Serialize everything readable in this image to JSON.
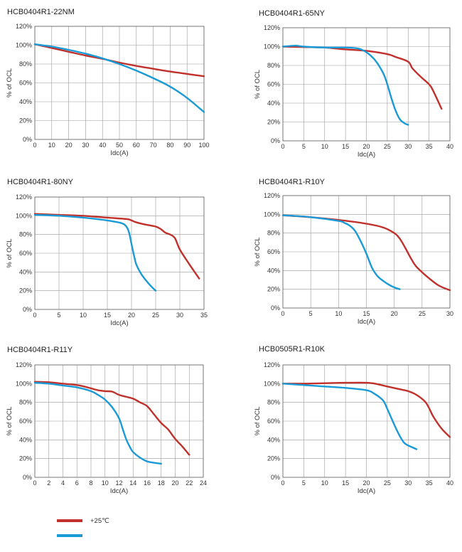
{
  "legend": {
    "items": [
      {
        "label": "+25℃",
        "color": "#c0312b"
      },
      {
        "label": "",
        "color": "#1a9ad6"
      }
    ]
  },
  "chart_data": [
    {
      "type": "line",
      "title": "HCB0404R1-22NM",
      "xlabel": "Idc(A)",
      "ylabel": "% of OCL",
      "xlim": [
        0,
        100
      ],
      "ylim": [
        0,
        120
      ],
      "xticks": [
        0,
        10,
        20,
        30,
        40,
        50,
        60,
        70,
        80,
        90,
        100
      ],
      "yticks": [
        0,
        20,
        40,
        60,
        80,
        100,
        120
      ],
      "grid": true,
      "series": [
        {
          "color": "#c0312b",
          "x": [
            0,
            10,
            20,
            30,
            40,
            50,
            60,
            70,
            80,
            90,
            100
          ],
          "y": [
            101,
            97,
            93,
            89,
            85.5,
            81.5,
            78,
            75,
            72,
            69.5,
            67
          ]
        },
        {
          "color": "#1a9ad6",
          "x": [
            0,
            10,
            20,
            30,
            40,
            50,
            60,
            70,
            80,
            90,
            100
          ],
          "y": [
            101,
            98.5,
            95,
            91,
            86,
            80,
            73,
            65,
            56,
            44,
            29
          ]
        }
      ]
    },
    {
      "type": "line",
      "title": "HCB0404R1-65NY",
      "xlabel": "Idc(A)",
      "ylabel": "% of OCL",
      "xlim": [
        0,
        40
      ],
      "ylim": [
        0,
        120
      ],
      "xticks": [
        0,
        5,
        10,
        15,
        20,
        25,
        30,
        35,
        40
      ],
      "yticks": [
        0,
        20,
        40,
        60,
        80,
        100,
        120
      ],
      "grid": true,
      "series": [
        {
          "color": "#c0312b",
          "x": [
            0,
            5,
            10,
            15,
            20,
            25,
            27,
            30,
            31,
            33,
            35,
            36,
            38
          ],
          "y": [
            100,
            99.5,
            99,
            97,
            95.5,
            92,
            89,
            84,
            77,
            68,
            60,
            53,
            34
          ]
        },
        {
          "color": "#1a9ad6",
          "x": [
            0,
            3,
            5,
            10,
            15,
            18,
            20,
            22,
            24,
            25,
            26,
            27,
            28,
            29,
            30
          ],
          "y": [
            100,
            101,
            100,
            99,
            99,
            98,
            94,
            86,
            72,
            60,
            45,
            32,
            23,
            19,
            17
          ]
        }
      ]
    },
    {
      "type": "line",
      "title": "HCB0404R1-80NY",
      "xlabel": "Idc(A)",
      "ylabel": "% of OCL",
      "xlim": [
        0,
        35
      ],
      "ylim": [
        0,
        120
      ],
      "xticks": [
        0,
        5,
        10,
        15,
        20,
        25,
        30,
        35
      ],
      "yticks": [
        0,
        20,
        40,
        60,
        80,
        100,
        120
      ],
      "grid": true,
      "series": [
        {
          "color": "#c0312b",
          "x": [
            0,
            5,
            10,
            15,
            19,
            20,
            21,
            23,
            25,
            26,
            27,
            28,
            29,
            30,
            32,
            34
          ],
          "y": [
            102,
            101,
            100,
            98,
            96.5,
            95,
            93,
            90.5,
            88.5,
            86,
            82,
            80,
            76,
            64,
            48,
            33
          ]
        },
        {
          "color": "#1a9ad6",
          "x": [
            0,
            5,
            10,
            15,
            18,
            19,
            19.5,
            20,
            20.5,
            21,
            22,
            23,
            24,
            25
          ],
          "y": [
            101,
            100,
            98,
            95,
            92,
            88,
            82,
            70,
            58,
            48,
            38,
            31,
            25,
            20
          ]
        }
      ]
    },
    {
      "type": "line",
      "title": "HCB0404R1-R10Y",
      "xlabel": "Idc(A)",
      "ylabel": "% of OCL",
      "xlim": [
        0,
        30
      ],
      "ylim": [
        0,
        120
      ],
      "xticks": [
        0,
        5,
        10,
        15,
        20,
        25,
        30
      ],
      "yticks": [
        0,
        20,
        40,
        60,
        80,
        100,
        120
      ],
      "grid": true,
      "series": [
        {
          "color": "#c0312b",
          "x": [
            0,
            5,
            10,
            15,
            18,
            20,
            21,
            22,
            23,
            24,
            26,
            28,
            30
          ],
          "y": [
            99,
            97,
            94,
            90,
            86,
            80,
            74,
            64,
            53,
            44,
            33,
            24,
            19
          ]
        },
        {
          "color": "#1a9ad6",
          "x": [
            0,
            5,
            10,
            11,
            12,
            13,
            14,
            15,
            16,
            17,
            18,
            19,
            20,
            21
          ],
          "y": [
            99,
            97,
            93,
            91,
            88,
            82,
            71,
            58,
            43,
            34,
            29,
            25,
            22,
            20
          ]
        }
      ]
    },
    {
      "type": "line",
      "title": "HCB0404R1-R11Y",
      "xlabel": "Idc(A)",
      "ylabel": "% of OCL",
      "xlim": [
        0,
        24
      ],
      "ylim": [
        0,
        120
      ],
      "xticks": [
        0,
        2,
        4,
        6,
        8,
        10,
        12,
        14,
        16,
        18,
        20,
        22,
        24
      ],
      "yticks": [
        0,
        20,
        40,
        60,
        80,
        100,
        120
      ],
      "grid": true,
      "series": [
        {
          "color": "#c0312b",
          "x": [
            0,
            2,
            4,
            6,
            7,
            8,
            9,
            10,
            11,
            12,
            13,
            14,
            15,
            16,
            17,
            18,
            19,
            20,
            21,
            22
          ],
          "y": [
            102,
            101.5,
            100,
            98.5,
            97,
            95,
            93,
            92,
            91.5,
            88,
            86,
            84,
            80,
            76,
            67,
            58,
            51,
            41,
            33,
            24
          ]
        },
        {
          "color": "#1a9ad6",
          "x": [
            0,
            2,
            4,
            6,
            8,
            9,
            10,
            11,
            12,
            12.5,
            13,
            13.5,
            14,
            15,
            16,
            17,
            18
          ],
          "y": [
            101,
            100,
            98,
            96,
            92,
            88,
            83,
            75,
            63,
            52,
            41,
            33,
            27,
            21,
            17,
            15.5,
            14.5
          ]
        }
      ]
    },
    {
      "type": "line",
      "title": "HCB0505R1-R10K",
      "xlabel": "Idc(A)",
      "ylabel": "% of OCL",
      "xlim": [
        0,
        40
      ],
      "ylim": [
        0,
        120
      ],
      "xticks": [
        0,
        5,
        10,
        15,
        20,
        25,
        30,
        35,
        40
      ],
      "yticks": [
        0,
        20,
        40,
        60,
        80,
        100,
        120
      ],
      "grid": true,
      "series": [
        {
          "color": "#c0312b",
          "x": [
            0,
            5,
            10,
            15,
            20,
            22,
            25,
            28,
            30,
            32,
            34,
            35,
            36,
            38,
            40
          ],
          "y": [
            100,
            100,
            100.5,
            101,
            101,
            100,
            97,
            94,
            92,
            88,
            81,
            74,
            65,
            52,
            43
          ]
        },
        {
          "color": "#1a9ad6",
          "x": [
            0,
            5,
            10,
            15,
            20,
            22,
            24,
            25,
            26,
            27,
            28,
            29,
            30,
            31,
            32
          ],
          "y": [
            100,
            98.5,
            97,
            95.5,
            93,
            89,
            82,
            73,
            63,
            53,
            44,
            37,
            34,
            32,
            30
          ]
        }
      ]
    }
  ]
}
